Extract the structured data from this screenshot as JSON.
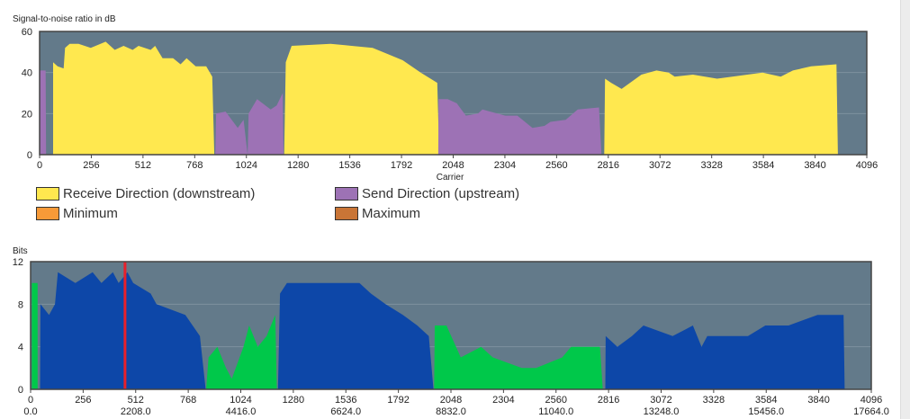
{
  "chart_data": [
    {
      "type": "area",
      "title": "Signal-to-noise ratio in dB",
      "xlabel": "Carrier",
      "ylabel": "Signal-to-noise ratio in dB",
      "xlim": [
        0,
        4096
      ],
      "ylim": [
        0,
        60
      ],
      "xticks": [
        "0",
        "256",
        "512",
        "768",
        "1024",
        "1280",
        "1536",
        "1792",
        "2048",
        "2304",
        "2560",
        "2816",
        "3072",
        "3328",
        "3584",
        "3840",
        "4096"
      ],
      "yticks": [
        "0",
        "20",
        "40",
        "60"
      ],
      "background": "#637a8a",
      "legend": [
        {
          "label": "Receive Direction (downstream)",
          "color": "#ffe84f"
        },
        {
          "label": "Send Direction (upstream)",
          "color": "#9d72b5"
        },
        {
          "label": "Minimum",
          "color": "#f79a38"
        },
        {
          "label": "Maximum",
          "color": "#c97536"
        }
      ],
      "series": [
        {
          "name": "Receive Direction (downstream)",
          "color": "#ffe84f",
          "segments": [
            [
              [
                67,
                45
              ],
              [
                89,
                43
              ],
              [
                119,
                42
              ],
              [
                126,
                52
              ],
              [
                149,
                54
              ],
              [
                193,
                54
              ],
              [
                253,
                52
              ],
              [
                327,
                55
              ],
              [
                372,
                51
              ],
              [
                416,
                53
              ],
              [
                461,
                51
              ],
              [
                490,
                53
              ],
              [
                550,
                51
              ],
              [
                572,
                53
              ],
              [
                609,
                47
              ],
              [
                661,
                47
              ],
              [
                698,
                44
              ],
              [
                728,
                47
              ],
              [
                773,
                43
              ],
              [
                825,
                43
              ],
              [
                855,
                38
              ],
              [
                865,
                0
              ]
            ],
            [
              [
                1211,
                0
              ],
              [
                1219,
                45
              ],
              [
                1248,
                53
              ],
              [
                1441,
                54
              ],
              [
                1545,
                53
              ],
              [
                1649,
                52
              ],
              [
                1724,
                49
              ],
              [
                1798,
                46
              ],
              [
                1887,
                40
              ],
              [
                1969,
                35
              ],
              [
                1979,
                0
              ]
            ],
            [
              [
                2796,
                0
              ],
              [
                2800,
                37
              ],
              [
                2830,
                35
              ],
              [
                2882,
                32
              ],
              [
                2980,
                39
              ],
              [
                3055,
                41
              ],
              [
                3115,
                40
              ],
              [
                3145,
                38
              ],
              [
                3235,
                39
              ],
              [
                3355,
                37
              ],
              [
                3430,
                38
              ],
              [
                3580,
                40
              ],
              [
                3670,
                38
              ],
              [
                3730,
                41
              ],
              [
                3820,
                43
              ],
              [
                3946,
                44
              ],
              [
                3953,
                0
              ]
            ]
          ]
        },
        {
          "name": "Send Direction (upstream)",
          "color": "#9d72b5",
          "segments": [
            [
              [
                0,
                41
              ],
              [
                30,
                41
              ],
              [
                32,
                0
              ]
            ],
            [
              [
                870,
                0
              ],
              [
                874,
                20
              ],
              [
                921,
                21
              ],
              [
                981,
                13
              ],
              [
                1010,
                17
              ],
              [
                1030,
                0
              ],
              [
                1035,
                20
              ],
              [
                1077,
                27
              ],
              [
                1144,
                22
              ],
              [
                1174,
                24
              ],
              [
                1204,
                30
              ],
              [
                1208,
                0
              ]
            ],
            [
              [
                1974,
                0
              ],
              [
                1976,
                27
              ],
              [
                2021,
                27
              ],
              [
                2066,
                25
              ],
              [
                2111,
                19
              ],
              [
                2171,
                20
              ],
              [
                2193,
                22
              ],
              [
                2231,
                21
              ],
              [
                2306,
                19
              ],
              [
                2366,
                19
              ],
              [
                2440,
                13
              ],
              [
                2500,
                14
              ],
              [
                2530,
                16
              ],
              [
                2605,
                17
              ],
              [
                2665,
                22
              ],
              [
                2770,
                23
              ],
              [
                2782,
                0
              ]
            ]
          ]
        }
      ]
    },
    {
      "type": "area",
      "title": "Bits",
      "ylabel": "Bits",
      "xlim": [
        0,
        4096
      ],
      "ylim": [
        0,
        12
      ],
      "xticks": [
        "0",
        "256",
        "512",
        "768",
        "1024",
        "1280",
        "1536",
        "1792",
        "2048",
        "2304",
        "2560",
        "2816",
        "3072",
        "3328",
        "3584",
        "3840",
        "4096"
      ],
      "xticks2": [
        "0.0",
        "2208.0",
        "4416.0",
        "6624.0",
        "8832.0",
        "11040.0",
        "13248.0",
        "15456.0",
        "17664.0"
      ],
      "yticks": [
        "0",
        "4",
        "8",
        "12"
      ],
      "background": "#637a8a",
      "marker": {
        "carrier": 460,
        "color": "#e8202a"
      },
      "series": [
        {
          "name": "Downstream bits",
          "color": "#0d47a8",
          "segments": [
            [
              [
                46,
                0
              ],
              [
                48,
                8
              ],
              [
                90,
                7
              ],
              [
                119,
                8
              ],
              [
                133,
                11
              ],
              [
                218,
                10
              ],
              [
                302,
                11
              ],
              [
                345,
                10
              ],
              [
                401,
                11
              ],
              [
                429,
                10
              ],
              [
                472,
                11
              ],
              [
                500,
                10
              ],
              [
                585,
                9
              ],
              [
                613,
                8
              ],
              [
                754,
                7
              ],
              [
                825,
                5
              ],
              [
                853,
                0
              ]
            ],
            [
              [
                1205,
                0
              ],
              [
                1215,
                9
              ],
              [
                1249,
                10
              ],
              [
                1432,
                10
              ],
              [
                1602,
                10
              ],
              [
                1658,
                9
              ],
              [
                1729,
                8
              ],
              [
                1814,
                7
              ],
              [
                1884,
                6
              ],
              [
                1940,
                5
              ],
              [
                1963,
                0
              ]
            ],
            [
              [
                2800,
                0
              ],
              [
                2802,
                5
              ],
              [
                2859,
                4
              ],
              [
                2930,
                5
              ],
              [
                2986,
                6
              ],
              [
                3128,
                5
              ],
              [
                3227,
                6
              ],
              [
                3269,
                4
              ],
              [
                3297,
                5
              ],
              [
                3495,
                5
              ],
              [
                3580,
                6
              ],
              [
                3693,
                6
              ],
              [
                3834,
                7
              ],
              [
                3961,
                7
              ],
              [
                3966,
                0
              ]
            ]
          ]
        },
        {
          "name": "Upstream bits",
          "color": "#00c84a",
          "segments": [
            [
              [
                6,
                0
              ],
              [
                6,
                10
              ],
              [
                34,
                10
              ],
              [
                34,
                0
              ]
            ],
            [
              [
                855,
                0
              ],
              [
                867,
                3
              ],
              [
                910,
                4
              ],
              [
                952,
                2
              ],
              [
                980,
                1
              ],
              [
                1037,
                4
              ],
              [
                1065,
                6
              ],
              [
                1107,
                4
              ],
              [
                1150,
                5
              ],
              [
                1192,
                7
              ],
              [
                1200,
                0
              ]
            ],
            [
              [
                1966,
                0
              ],
              [
                1969,
                6
              ],
              [
                2026,
                6
              ],
              [
                2096,
                3
              ],
              [
                2195,
                4
              ],
              [
                2252,
                3
              ],
              [
                2393,
                2
              ],
              [
                2463,
                2
              ],
              [
                2590,
                3
              ],
              [
                2633,
                4
              ],
              [
                2774,
                4
              ],
              [
                2788,
                0
              ]
            ]
          ]
        }
      ]
    }
  ]
}
